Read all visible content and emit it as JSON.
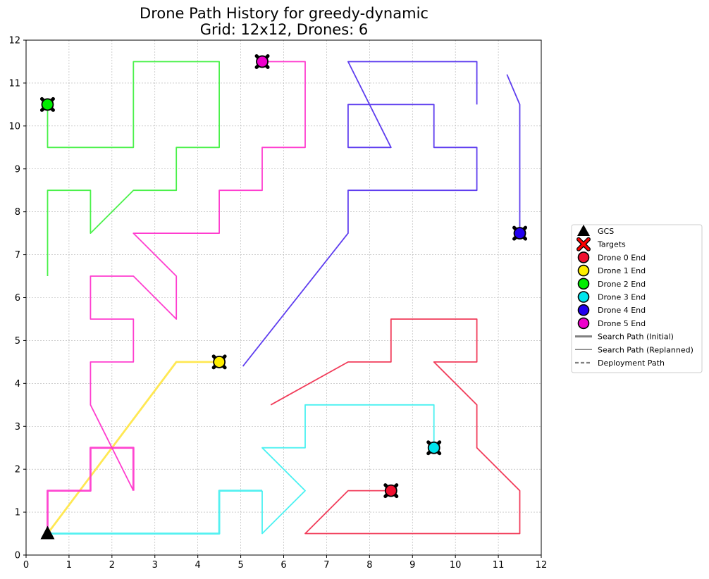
{
  "chart_data": {
    "type": "line",
    "title_line1": "Drone Path History for greedy-dynamic",
    "title_line2": "Grid: 12x12, Drones: 6",
    "xlabel": "",
    "ylabel": "",
    "xlim": [
      0,
      12
    ],
    "ylim": [
      0,
      12
    ],
    "xticks": [
      "0",
      "1",
      "2",
      "3",
      "4",
      "5",
      "6",
      "7",
      "8",
      "9",
      "10",
      "11",
      "12"
    ],
    "yticks": [
      "0",
      "1",
      "2",
      "3",
      "4",
      "5",
      "6",
      "7",
      "8",
      "9",
      "10",
      "11",
      "12"
    ],
    "grid": true,
    "legend_placement": "right-center-outside",
    "gcs": {
      "x": 0.5,
      "y": 0.5
    },
    "series": [
      {
        "drone": 0,
        "color": "#f03050",
        "initial_path": [],
        "replanned_path": [
          [
            5.7,
            3.5
          ],
          [
            7.5,
            4.5
          ],
          [
            8.5,
            4.5
          ],
          [
            8.5,
            5.5
          ],
          [
            10.5,
            5.5
          ],
          [
            10.5,
            4.5
          ],
          [
            9.5,
            4.5
          ],
          [
            10.5,
            3.5
          ],
          [
            10.5,
            2.5
          ],
          [
            11.5,
            1.5
          ],
          [
            11.5,
            0.5
          ],
          [
            6.5,
            0.5
          ],
          [
            7.5,
            1.5
          ],
          [
            8.5,
            1.5
          ]
        ],
        "end": {
          "x": 8.5,
          "y": 1.5
        }
      },
      {
        "drone": 1,
        "color": "#ffe640",
        "initial_path": [
          [
            0.5,
            0.5
          ],
          [
            3.5,
            4.5
          ],
          [
            4.5,
            4.5
          ]
        ],
        "replanned_path": [],
        "end": {
          "x": 4.5,
          "y": 4.5
        }
      },
      {
        "drone": 2,
        "color": "#40f040",
        "initial_path": [],
        "replanned_path": [
          [
            0.5,
            6.5
          ],
          [
            0.5,
            8.5
          ],
          [
            1.5,
            8.5
          ],
          [
            1.5,
            7.5
          ],
          [
            2.5,
            8.5
          ],
          [
            3.5,
            8.5
          ],
          [
            3.5,
            9.5
          ],
          [
            4.5,
            9.5
          ],
          [
            4.5,
            11.5
          ],
          [
            2.5,
            11.5
          ],
          [
            2.5,
            9.5
          ],
          [
            0.5,
            9.5
          ],
          [
            0.5,
            10.5
          ]
        ],
        "end": {
          "x": 0.5,
          "y": 10.5
        }
      },
      {
        "drone": 3,
        "color": "#40f0f0",
        "initial_path": [
          [
            0.5,
            0.5
          ],
          [
            4.5,
            0.5
          ],
          [
            4.5,
            1.5
          ],
          [
            5.5,
            1.5
          ]
        ],
        "replanned_path": [
          [
            5.5,
            1.5
          ],
          [
            5.5,
            0.5
          ],
          [
            6.5,
            1.5
          ],
          [
            5.5,
            2.5
          ],
          [
            6.5,
            2.5
          ],
          [
            6.5,
            3.5
          ],
          [
            9.5,
            3.5
          ],
          [
            9.5,
            2.5
          ]
        ],
        "end": {
          "x": 9.5,
          "y": 2.5
        }
      },
      {
        "drone": 4,
        "color": "#5533ee",
        "initial_path": [],
        "replanned_path": [
          [
            5.05,
            4.4
          ],
          [
            7.5,
            7.5
          ],
          [
            7.5,
            8.5
          ],
          [
            10.5,
            8.5
          ],
          [
            10.5,
            9.5
          ],
          [
            9.5,
            9.5
          ],
          [
            9.5,
            10.5
          ],
          [
            7.5,
            10.5
          ],
          [
            7.5,
            9.5
          ],
          [
            8.5,
            9.5
          ],
          [
            7.5,
            11.5
          ],
          [
            10.5,
            11.5
          ],
          [
            10.5,
            10.5
          ]
        ],
        "replanned_path_2": [
          [
            11.2,
            11.2
          ],
          [
            11.5,
            10.5
          ],
          [
            11.5,
            7.5
          ]
        ],
        "end": {
          "x": 11.5,
          "y": 7.5
        }
      },
      {
        "drone": 5,
        "color": "#ff33cc",
        "initial_path": [
          [
            0.5,
            0.5
          ],
          [
            0.5,
            1.5
          ],
          [
            1.5,
            1.5
          ],
          [
            1.5,
            2.5
          ],
          [
            2.5,
            2.5
          ],
          [
            2.5,
            1.5
          ]
        ],
        "replanned_path": [
          [
            2.5,
            1.5
          ],
          [
            1.5,
            3.5
          ],
          [
            1.5,
            4.5
          ],
          [
            2.5,
            4.5
          ],
          [
            2.5,
            5.5
          ],
          [
            1.5,
            5.5
          ],
          [
            1.5,
            6.5
          ],
          [
            2.5,
            6.5
          ],
          [
            3.5,
            5.5
          ],
          [
            3.5,
            6.5
          ],
          [
            2.5,
            7.5
          ],
          [
            4.5,
            7.5
          ],
          [
            4.5,
            8.5
          ],
          [
            5.5,
            8.5
          ],
          [
            5.5,
            9.5
          ],
          [
            6.5,
            9.5
          ],
          [
            6.5,
            11.5
          ],
          [
            5.5,
            11.5
          ]
        ],
        "end": {
          "x": 5.5,
          "y": 11.5
        }
      }
    ],
    "legend": [
      {
        "label": "GCS",
        "kind": "triangle",
        "color": "#000000"
      },
      {
        "label": "Targets",
        "kind": "x",
        "color": "#ff0000"
      },
      {
        "label": "Drone 0 End",
        "kind": "circle",
        "color": "#f01030"
      },
      {
        "label": "Drone 1 End",
        "kind": "circle",
        "color": "#ffee00"
      },
      {
        "label": "Drone 2 End",
        "kind": "circle",
        "color": "#00ee00"
      },
      {
        "label": "Drone 3 End",
        "kind": "circle",
        "color": "#00e5ee"
      },
      {
        "label": "Drone 4 End",
        "kind": "circle",
        "color": "#2200ee"
      },
      {
        "label": "Drone 5 End",
        "kind": "circle",
        "color": "#ee00cc"
      },
      {
        "label": "Search Path (Initial)",
        "kind": "line-thick",
        "color": "#808080"
      },
      {
        "label": "Search Path (Replanned)",
        "kind": "line-thin",
        "color": "#808080"
      },
      {
        "label": "Deployment Path",
        "kind": "line-dashed",
        "color": "#808080"
      }
    ]
  }
}
